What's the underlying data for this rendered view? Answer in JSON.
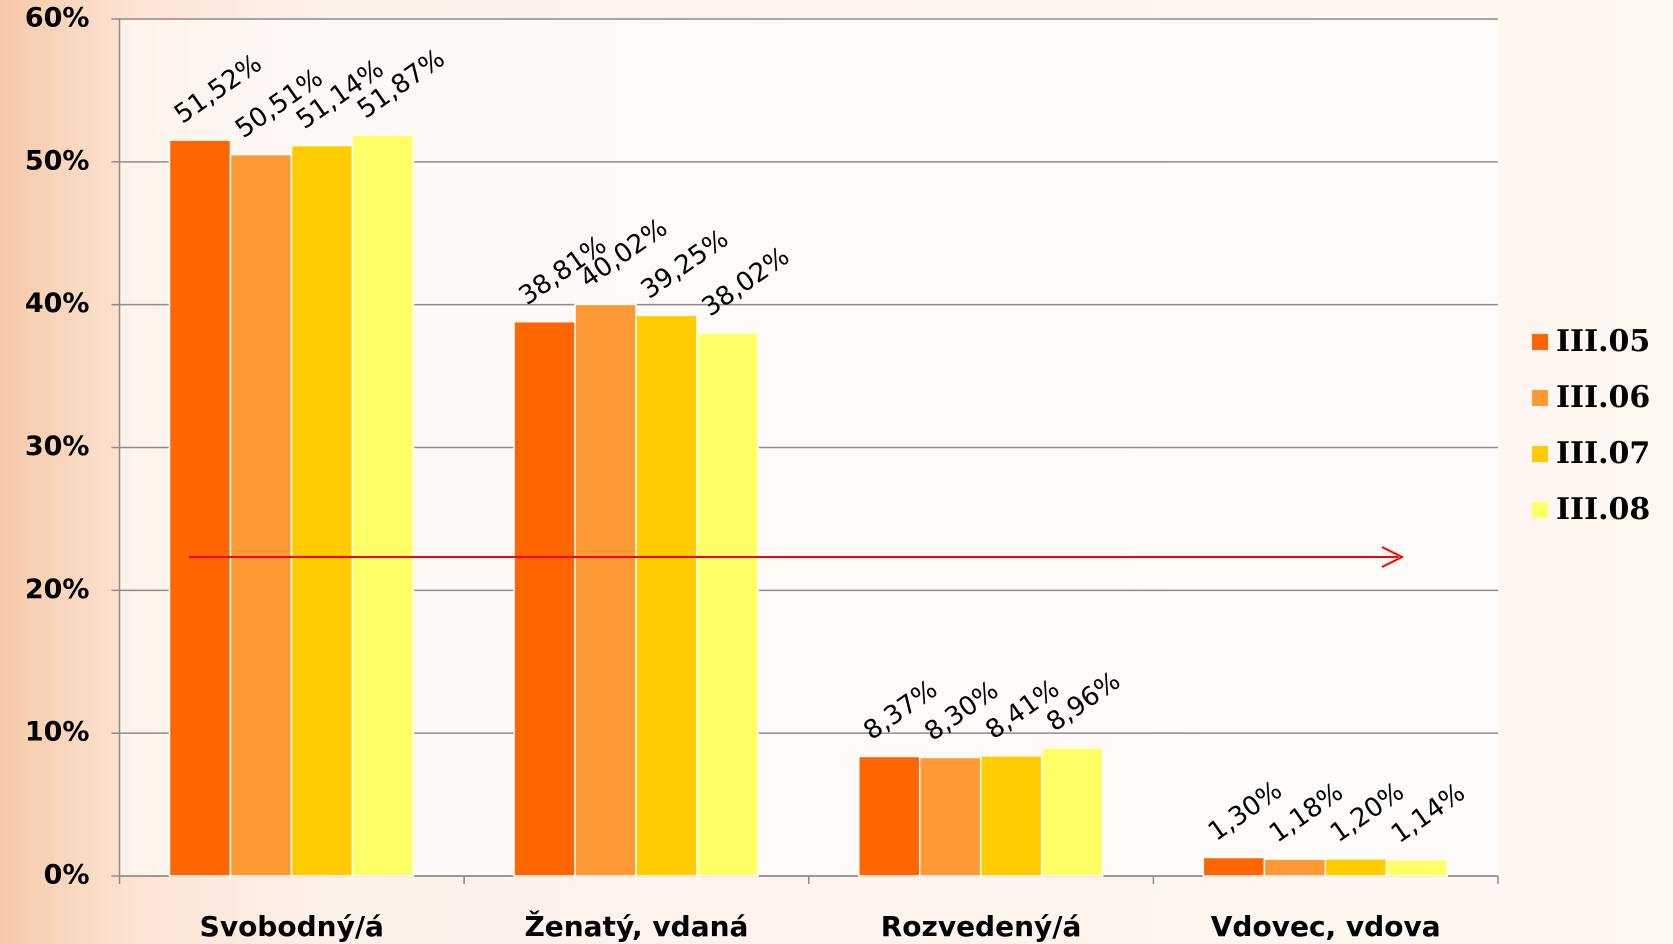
{
  "chart_data": {
    "type": "bar",
    "categories": [
      "Svobodný/á",
      "Ženatý, vdaná",
      "Rozvedený/á",
      "Vdovec, vdova"
    ],
    "series": [
      {
        "name": "III.05",
        "color": "#ff6600",
        "values": [
          51.52,
          38.81,
          8.37,
          1.3
        ],
        "value_labels": [
          "51,52%",
          "38,81%",
          "8,37%",
          "1,30%"
        ]
      },
      {
        "name": "III.06",
        "color": "#ff9933",
        "values": [
          50.51,
          40.02,
          8.3,
          1.18
        ],
        "value_labels": [
          "50,51%",
          "40,02%",
          "8,30%",
          "1,18%"
        ]
      },
      {
        "name": "III.07",
        "color": "#ffcc00",
        "values": [
          51.14,
          39.25,
          8.41,
          1.2
        ],
        "value_labels": [
          "51,14%",
          "39,25%",
          "8,41%",
          "1,20%"
        ]
      },
      {
        "name": "III.08",
        "color": "#ffff66",
        "values": [
          51.87,
          38.02,
          8.96,
          1.14
        ],
        "value_labels": [
          "51,87%",
          "38,02%",
          "8,96%",
          "1,14%"
        ]
      }
    ],
    "ylim": [
      0,
      60
    ],
    "yticks": [
      {
        "value": 0,
        "label": "0%"
      },
      {
        "value": 10,
        "label": "10%"
      },
      {
        "value": 20,
        "label": "20%"
      },
      {
        "value": 30,
        "label": "30%"
      },
      {
        "value": 40,
        "label": "40%"
      },
      {
        "value": 50,
        "label": "50%"
      },
      {
        "value": 60,
        "label": "60%"
      }
    ],
    "grid": true,
    "legend": "right"
  }
}
